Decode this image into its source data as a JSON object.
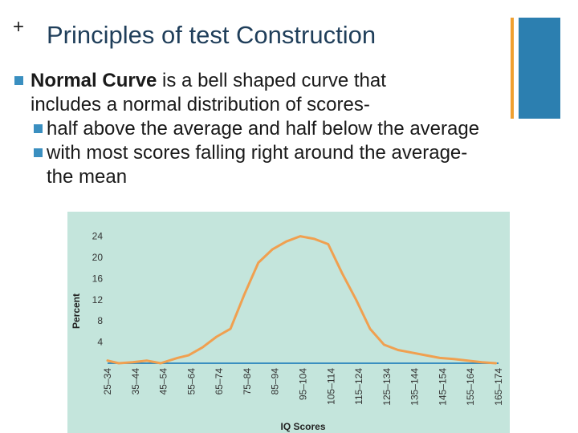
{
  "slide": {
    "plus": "+",
    "title": "Principles of test Construction",
    "bullet1_bold": "Normal Curve",
    "bullet1_rest": " is a bell shaped curve that",
    "bullet1_cont": "includes a normal distribution of scores-",
    "sub1": "half above the average and half below the average",
    "sub2": "with most scores falling right around the average-",
    "sub2_cont": "the mean",
    "accent_colors": {
      "thin": "#f0a030",
      "block": "#2c7fb0",
      "bullet": "#3a8fc0"
    }
  },
  "chart_data": {
    "type": "line",
    "xlabel": "IQ Scores",
    "ylabel": "Percent",
    "categories": [
      "25–34",
      "35–44",
      "45–54",
      "55–64",
      "65–74",
      "75–84",
      "85–94",
      "95–104",
      "105–114",
      "115–124",
      "125–134",
      "135–144",
      "145–154",
      "155–164",
      "165–174"
    ],
    "y_ticks": [
      4,
      8,
      12,
      16,
      20,
      24
    ],
    "ylim": [
      0,
      26
    ],
    "series": [
      {
        "x": [
          30,
          34,
          39,
          44,
          49,
          55,
          59,
          64,
          69,
          74,
          79,
          84,
          89,
          94,
          99,
          104,
          109,
          114,
          119,
          124,
          129,
          134,
          139,
          144,
          149,
          154,
          159,
          164,
          169
        ],
        "y": [
          0.5,
          0,
          0.2,
          0.5,
          0,
          1,
          1.5,
          3,
          5,
          6.5,
          13,
          19,
          21.5,
          23,
          24,
          23.5,
          22.5,
          17,
          12,
          6.5,
          3.5,
          2.5,
          2,
          1.5,
          1,
          0.8,
          0.5,
          0.2,
          0
        ]
      }
    ],
    "line_color": "#f0a050",
    "axis_color": "#3a8fc0",
    "grid": false
  }
}
